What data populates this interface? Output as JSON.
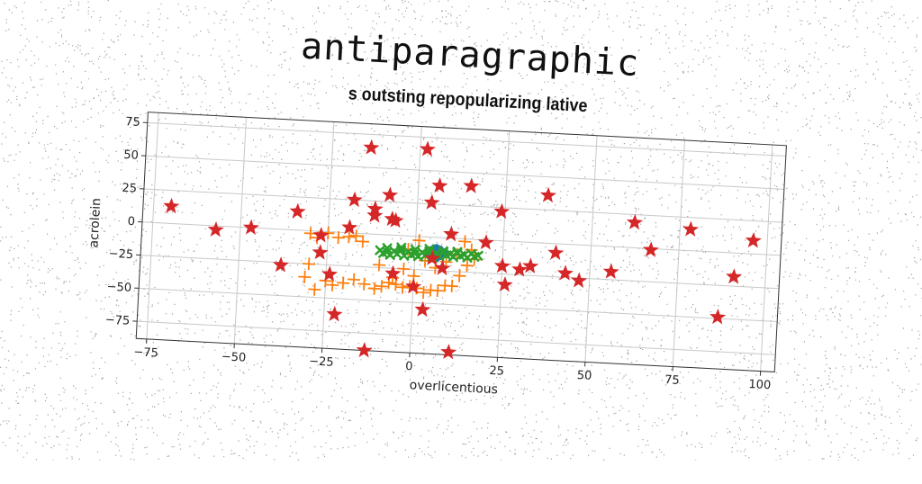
{
  "chart_data": {
    "type": "scatter",
    "title": "antiparagraphic",
    "subtitle": "s outsting repopularizing lative",
    "xlabel": "overlicentious",
    "ylabel": "acrolein",
    "xlim": [
      -78,
      104
    ],
    "ylim": [
      -88,
      83
    ],
    "xticks": [
      -75,
      -50,
      -25,
      0,
      25,
      50,
      75,
      100
    ],
    "xtick_labels": [
      "−75",
      "−50",
      "−25",
      "0",
      "25",
      "50",
      "75",
      "100"
    ],
    "yticks": [
      -75,
      -50,
      -25,
      0,
      25,
      50,
      75
    ],
    "ytick_labels": [
      "−75",
      "−50",
      "−25",
      "0",
      "25",
      "50",
      "75"
    ],
    "grid": true,
    "series": [
      {
        "marker": "blob",
        "color": "#1f77b4",
        "x": [
          4,
          5,
          6,
          7,
          5,
          8,
          6,
          4,
          9,
          7
        ],
        "y": [
          -10,
          -12,
          -8,
          -14,
          -15,
          -11,
          -16,
          -13,
          -12,
          -9
        ]
      },
      {
        "marker": "plus",
        "color": "#ff7f0e",
        "x": [
          -30,
          -28,
          -25,
          -22,
          -19,
          -17,
          -15,
          -30,
          -31,
          -28,
          -25,
          -23,
          -20,
          -17,
          -14,
          -11,
          -9,
          -7,
          -5,
          -3,
          -1,
          1,
          3,
          5,
          7,
          9,
          11,
          13,
          15,
          -10,
          -6,
          -3,
          0,
          3,
          6,
          9,
          12,
          14,
          16,
          17,
          -2,
          1
        ],
        "y": [
          -2,
          -5,
          -1,
          -4,
          -3,
          -2,
          -6,
          -25,
          -35,
          -44,
          -37,
          -40,
          -38,
          -35,
          -38,
          -41,
          -39,
          -36,
          -37,
          -39,
          -38,
          -39,
          -42,
          -40,
          -40,
          -36,
          -36,
          -28,
          -20,
          -23,
          -32,
          -25,
          -30,
          -18,
          -23,
          -18,
          -12,
          -2,
          -8,
          -15,
          -10,
          -3
        ]
      },
      {
        "marker": "x",
        "color": "#2ca02c",
        "x": [
          -10,
          -8,
          -6,
          -4,
          -2,
          0,
          2,
          4,
          6,
          8,
          10,
          12,
          14,
          16,
          18,
          -9,
          -7,
          -5,
          -3,
          -1,
          1,
          3,
          5,
          7,
          9,
          11,
          13,
          15,
          17,
          -8,
          -4,
          0,
          4,
          8,
          12
        ],
        "y": [
          -12,
          -13,
          -12,
          -11,
          -12,
          -13,
          -12,
          -11,
          -12,
          -11,
          -12,
          -11,
          -12,
          -11,
          -12,
          -14,
          -15,
          -14,
          -15,
          -14,
          -15,
          -14,
          -15,
          -14,
          -13,
          -14,
          -13,
          -14,
          -13,
          -10,
          -9,
          -10,
          -9,
          -10,
          -10
        ]
      },
      {
        "marker": "star",
        "color": "#d62728",
        "x": [
          -14,
          2,
          -70,
          -57,
          -47,
          -38,
          -34,
          -27,
          -24,
          -22,
          -19,
          -13,
          -12,
          -8,
          -6,
          0,
          4,
          11,
          20,
          25,
          33,
          37,
          43,
          47,
          56,
          62,
          67,
          78,
          87,
          91,
          96,
          -27,
          -18,
          -12,
          -7,
          3,
          6,
          10,
          15,
          8,
          -6,
          5,
          24,
          26,
          30,
          40
        ],
        "y": [
          65,
          66,
          13,
          -3,
          0,
          -27,
          14,
          -3,
          -32,
          -62,
          4,
          -88,
          14,
          30,
          11,
          -38,
          26,
          -86,
          -2,
          -19,
          -18,
          36,
          -22,
          -27,
          -19,
          19,
          -1,
          16,
          -49,
          -18,
          10,
          -16,
          25,
          19,
          12,
          -55,
          39,
          3,
          40,
          -23,
          -29,
          -16,
          22,
          -33,
          -21,
          -7
        ]
      }
    ]
  }
}
